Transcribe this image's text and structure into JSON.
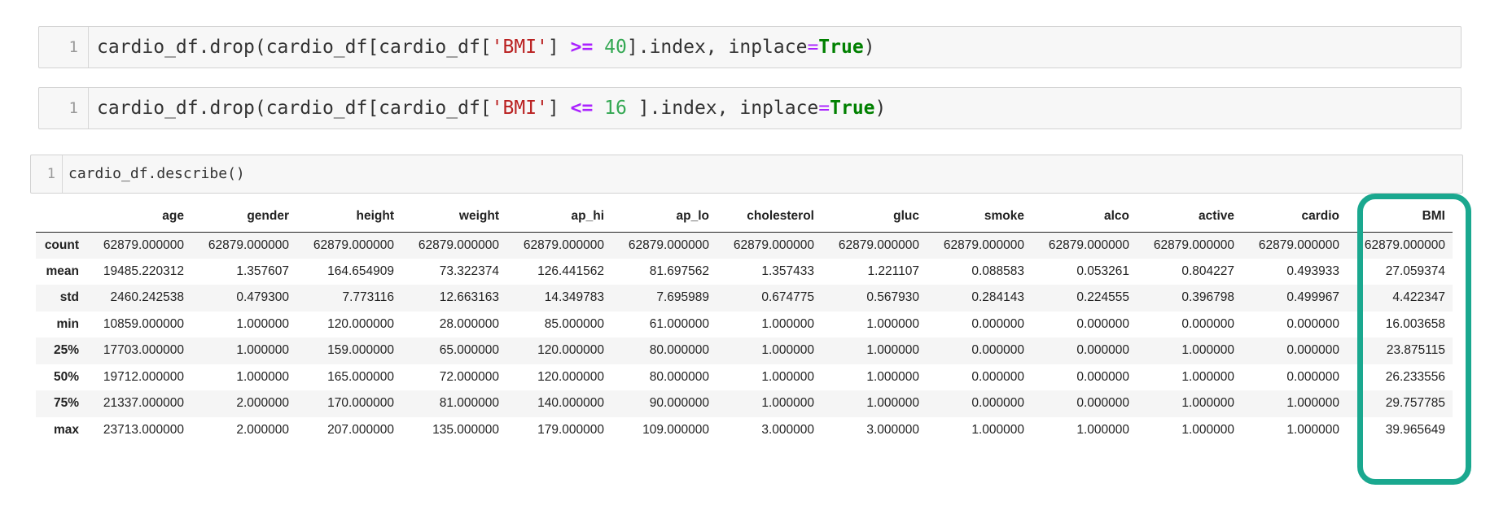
{
  "cells": [
    {
      "line_number": "1",
      "tokens": [
        {
          "t": "cardio_df.drop(cardio_df[cardio_df[",
          "c": ""
        },
        {
          "t": "'BMI'",
          "c": "tok-str"
        },
        {
          "t": "] ",
          "c": ""
        },
        {
          "t": ">=",
          "c": "tok-op"
        },
        {
          "t": " ",
          "c": ""
        },
        {
          "t": "40",
          "c": "tok-num"
        },
        {
          "t": "].index, inplace",
          "c": ""
        },
        {
          "t": "=",
          "c": "tok-eq"
        },
        {
          "t": "True",
          "c": "tok-kw"
        },
        {
          "t": ")",
          "c": ""
        }
      ]
    },
    {
      "line_number": "1",
      "tokens": [
        {
          "t": "cardio_df.drop(cardio_df[cardio_df[",
          "c": ""
        },
        {
          "t": "'BMI'",
          "c": "tok-str"
        },
        {
          "t": "] ",
          "c": ""
        },
        {
          "t": "<=",
          "c": "tok-op"
        },
        {
          "t": " ",
          "c": ""
        },
        {
          "t": "16",
          "c": "tok-num"
        },
        {
          "t": " ].index, inplace",
          "c": ""
        },
        {
          "t": "=",
          "c": "tok-eq"
        },
        {
          "t": "True",
          "c": "tok-kw"
        },
        {
          "t": ")",
          "c": ""
        }
      ]
    },
    {
      "line_number": "1",
      "tokens": [
        {
          "t": "cardio_df.describe()",
          "c": ""
        }
      ]
    }
  ],
  "table": {
    "columns": [
      "age",
      "gender",
      "height",
      "weight",
      "ap_hi",
      "ap_lo",
      "cholesterol",
      "gluc",
      "smoke",
      "alco",
      "active",
      "cardio",
      "BMI"
    ],
    "rows": [
      {
        "label": "count",
        "values": [
          "62879.000000",
          "62879.000000",
          "62879.000000",
          "62879.000000",
          "62879.000000",
          "62879.000000",
          "62879.000000",
          "62879.000000",
          "62879.000000",
          "62879.000000",
          "62879.000000",
          "62879.000000",
          "62879.000000"
        ]
      },
      {
        "label": "mean",
        "values": [
          "19485.220312",
          "1.357607",
          "164.654909",
          "73.322374",
          "126.441562",
          "81.697562",
          "1.357433",
          "1.221107",
          "0.088583",
          "0.053261",
          "0.804227",
          "0.493933",
          "27.059374"
        ]
      },
      {
        "label": "std",
        "values": [
          "2460.242538",
          "0.479300",
          "7.773116",
          "12.663163",
          "14.349783",
          "7.695989",
          "0.674775",
          "0.567930",
          "0.284143",
          "0.224555",
          "0.396798",
          "0.499967",
          "4.422347"
        ]
      },
      {
        "label": "min",
        "values": [
          "10859.000000",
          "1.000000",
          "120.000000",
          "28.000000",
          "85.000000",
          "61.000000",
          "1.000000",
          "1.000000",
          "0.000000",
          "0.000000",
          "0.000000",
          "0.000000",
          "16.003658"
        ]
      },
      {
        "label": "25%",
        "values": [
          "17703.000000",
          "1.000000",
          "159.000000",
          "65.000000",
          "120.000000",
          "80.000000",
          "1.000000",
          "1.000000",
          "0.000000",
          "0.000000",
          "1.000000",
          "0.000000",
          "23.875115"
        ]
      },
      {
        "label": "50%",
        "values": [
          "19712.000000",
          "1.000000",
          "165.000000",
          "72.000000",
          "120.000000",
          "80.000000",
          "1.000000",
          "1.000000",
          "0.000000",
          "0.000000",
          "1.000000",
          "0.000000",
          "26.233556"
        ]
      },
      {
        "label": "75%",
        "values": [
          "21337.000000",
          "2.000000",
          "170.000000",
          "81.000000",
          "140.000000",
          "90.000000",
          "1.000000",
          "1.000000",
          "0.000000",
          "0.000000",
          "1.000000",
          "1.000000",
          "29.757785"
        ]
      },
      {
        "label": "max",
        "values": [
          "23713.000000",
          "2.000000",
          "207.000000",
          "135.000000",
          "179.000000",
          "109.000000",
          "3.000000",
          "3.000000",
          "1.000000",
          "1.000000",
          "1.000000",
          "1.000000",
          "39.965649"
        ]
      }
    ]
  },
  "highlight": {
    "column": "BMI",
    "color": "#1aa88f"
  }
}
